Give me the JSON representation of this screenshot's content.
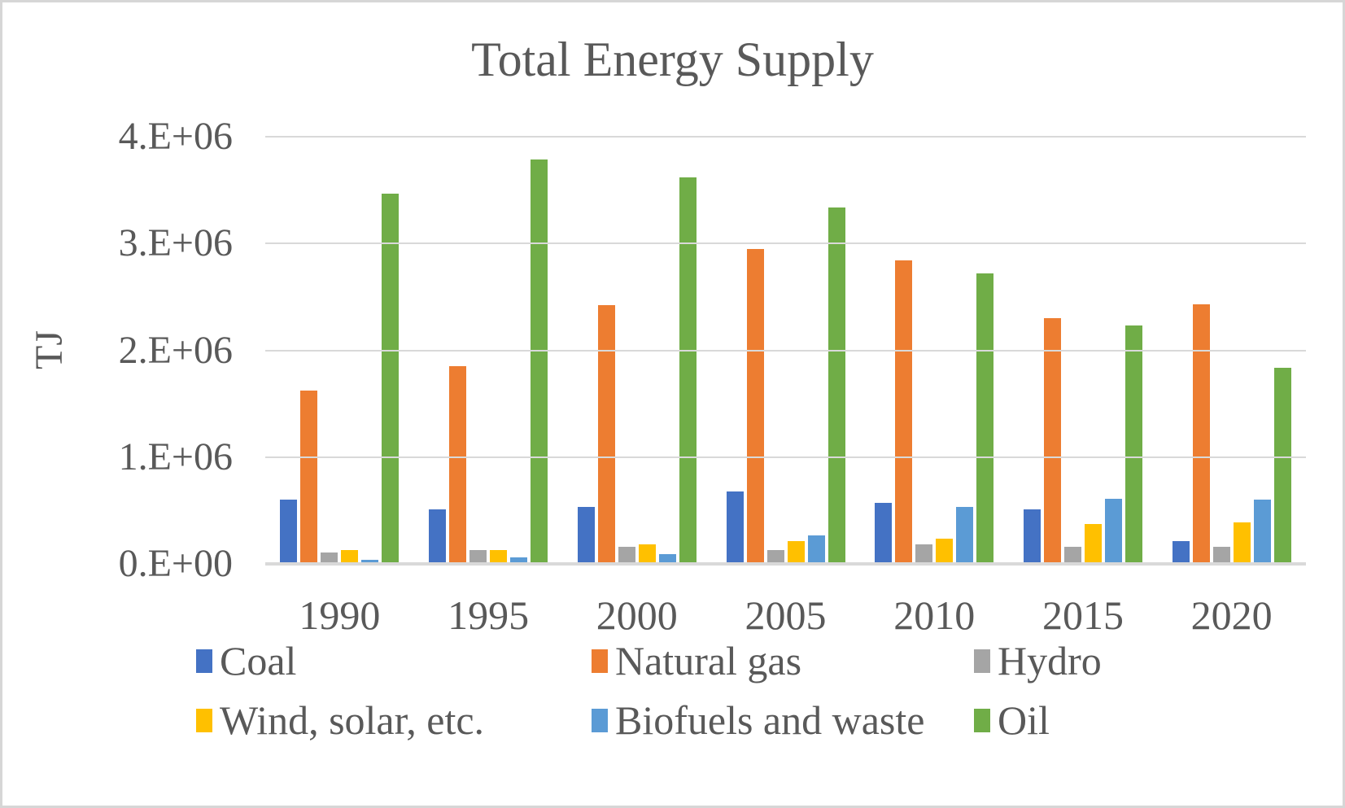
{
  "style": {
    "text_color": "#595959",
    "grid_color": "#d9d9d9",
    "axis_color": "#d9d9d9",
    "background": "#ffffff",
    "border_color": "#d6d6d6"
  },
  "chart_data": {
    "type": "bar",
    "title": "Total Energy Supply",
    "ylabel": "TJ",
    "xlabel": "",
    "categories": [
      "1990",
      "1995",
      "2000",
      "2005",
      "2010",
      "2015",
      "2020"
    ],
    "series": [
      {
        "name": "Coal",
        "color": "#4472C4",
        "values": [
          600000,
          510000,
          530000,
          680000,
          570000,
          510000,
          210000
        ]
      },
      {
        "name": "Natural gas",
        "color": "#ED7D31",
        "values": [
          1620000,
          1850000,
          2420000,
          2950000,
          2840000,
          2300000,
          2430000
        ]
      },
      {
        "name": "Hydro",
        "color": "#A5A5A5",
        "values": [
          110000,
          130000,
          160000,
          130000,
          180000,
          160000,
          160000
        ]
      },
      {
        "name": "Wind, solar, etc.",
        "color": "#FFC000",
        "values": [
          130000,
          130000,
          180000,
          210000,
          240000,
          370000,
          390000
        ]
      },
      {
        "name": "Biofuels and waste",
        "color": "#5B9BD5",
        "values": [
          40000,
          60000,
          90000,
          270000,
          530000,
          610000,
          600000
        ]
      },
      {
        "name": "Oil",
        "color": "#70AD47",
        "values": [
          3470000,
          3790000,
          3620000,
          3340000,
          2720000,
          2230000,
          1840000
        ]
      }
    ],
    "ylim": [
      0,
      4000000
    ],
    "ytick_labels": [
      "4.E+06",
      "3.E+06",
      "2.E+06",
      "1.E+06",
      "0.E+00"
    ],
    "grid": true,
    "legend_position": "bottom",
    "legend_rows": [
      [
        "Coal",
        "Natural gas",
        "Hydro"
      ],
      [
        "Wind, solar, etc.",
        "Biofuels and waste",
        "Oil"
      ]
    ]
  }
}
